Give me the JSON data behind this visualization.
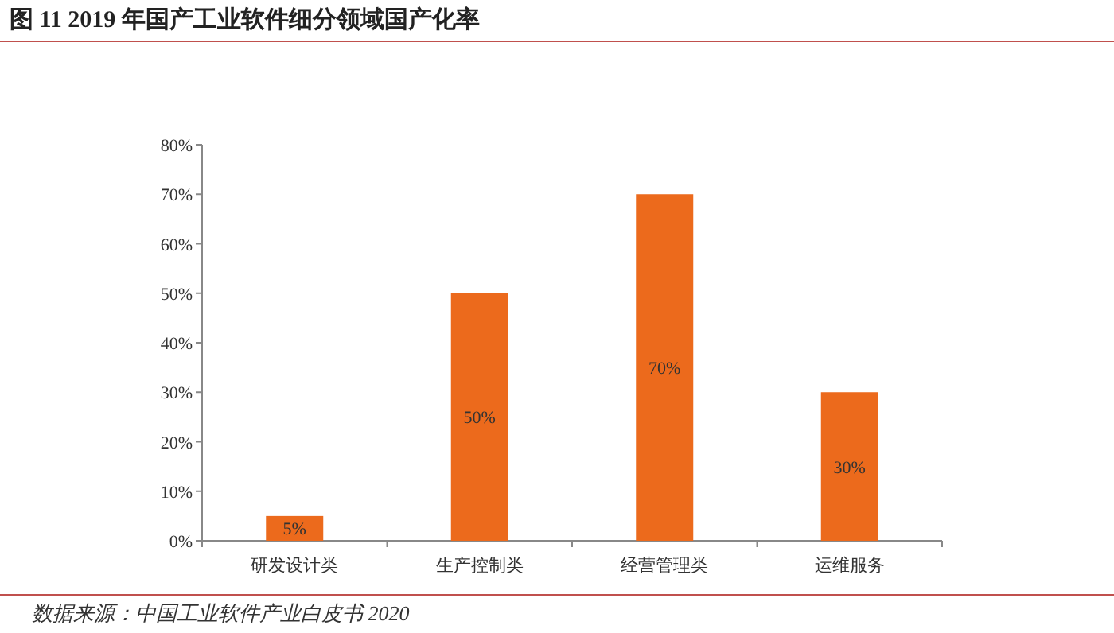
{
  "chart_data": {
    "type": "bar",
    "title": "图 11 2019 年国产工业软件细分领域国产化率",
    "categories": [
      "研发设计类",
      "生产控制类",
      "经营管理类",
      "运维服务"
    ],
    "values": [
      5,
      50,
      70,
      30
    ],
    "value_labels": [
      "5%",
      "50%",
      "70%",
      "30%"
    ],
    "color": "#ec6a1c",
    "ylim": [
      0,
      80
    ],
    "yticks": [
      {
        "value": 0,
        "label": "0%"
      },
      {
        "value": 10,
        "label": "10%"
      },
      {
        "value": 20,
        "label": "20%"
      },
      {
        "value": 30,
        "label": "30%"
      },
      {
        "value": 40,
        "label": "40%"
      },
      {
        "value": 50,
        "label": "50%"
      },
      {
        "value": 60,
        "label": "60%"
      },
      {
        "value": 70,
        "label": "70%"
      },
      {
        "value": 80,
        "label": "80%"
      }
    ],
    "grid": false,
    "annotations": [
      "数据来源：中国工业软件产业白皮书 2020"
    ]
  }
}
